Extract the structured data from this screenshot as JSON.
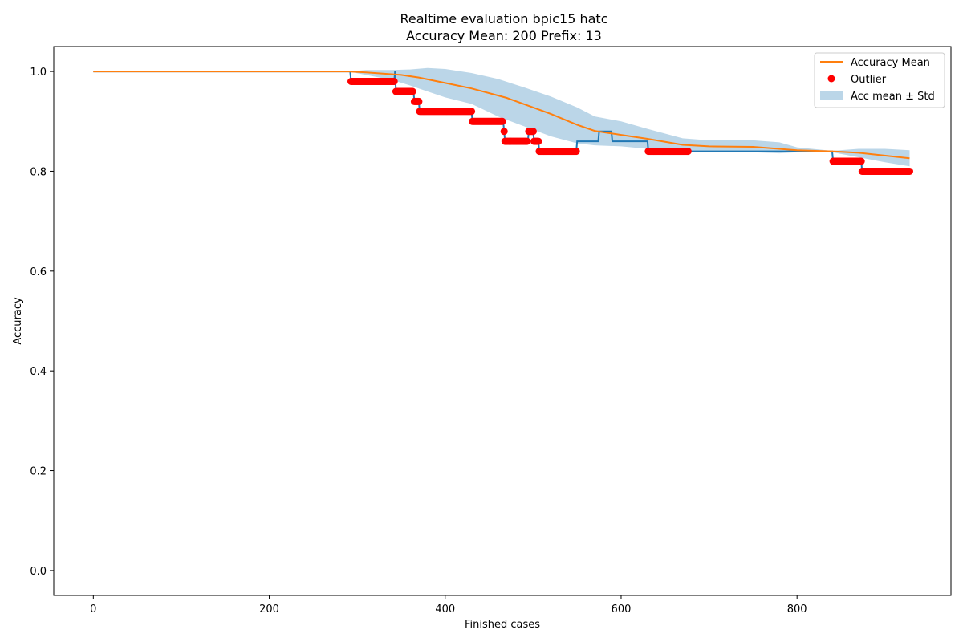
{
  "chart_data": {
    "type": "line",
    "title": "Realtime evaluation bpic15 hatc",
    "subtitle": "Accuracy Mean: 200 Prefix: 13",
    "xlabel": "Finished cases",
    "ylabel": "Accuracy",
    "xlim": [
      -45,
      975
    ],
    "ylim": [
      -0.05,
      1.05
    ],
    "xticks": [
      0,
      200,
      400,
      600,
      800
    ],
    "yticks": [
      0.0,
      0.2,
      0.4,
      0.6,
      0.8,
      1.0
    ],
    "xtick_labels": [
      "0",
      "200",
      "400",
      "600",
      "800"
    ],
    "ytick_labels": [
      "0.0",
      "0.2",
      "0.4",
      "0.6",
      "0.8",
      "1.0"
    ],
    "grid": false,
    "legend_placement": "top-right",
    "legend": {
      "mean_label": "Accuracy Mean",
      "outlier_label": "Outlier",
      "band_label": "Acc mean ± Std"
    },
    "colors": {
      "accuracy": "#1f77b4",
      "mean": "#ff7f0e",
      "outlier": "#ff0000",
      "band": "#1f77b4"
    },
    "accuracy_steps": [
      [
        0,
        1.0
      ],
      [
        292,
        1.0
      ],
      [
        293,
        0.98
      ],
      [
        342,
        0.98
      ],
      [
        343,
        1.0
      ],
      [
        344,
        0.96
      ],
      [
        364,
        0.96
      ],
      [
        365,
        0.94
      ],
      [
        370,
        0.94
      ],
      [
        371,
        0.92
      ],
      [
        430,
        0.92
      ],
      [
        431,
        0.9
      ],
      [
        466,
        0.9
      ],
      [
        467,
        0.88
      ],
      [
        468,
        0.86
      ],
      [
        494,
        0.86
      ],
      [
        495,
        0.88
      ],
      [
        500,
        0.88
      ],
      [
        501,
        0.86
      ],
      [
        506,
        0.86
      ],
      [
        507,
        0.84
      ],
      [
        549,
        0.84
      ],
      [
        550,
        0.86
      ],
      [
        574,
        0.86
      ],
      [
        575,
        0.88
      ],
      [
        589,
        0.88
      ],
      [
        590,
        0.86
      ],
      [
        630,
        0.86
      ],
      [
        631,
        0.84
      ],
      [
        840,
        0.84
      ],
      [
        841,
        0.82
      ],
      [
        873,
        0.82
      ],
      [
        874,
        0.8
      ],
      [
        928,
        0.8
      ]
    ],
    "mean": {
      "x": [
        0,
        290,
        310,
        350,
        370,
        400,
        430,
        470,
        500,
        520,
        550,
        570,
        600,
        630,
        670,
        700,
        750,
        800,
        840,
        870,
        928
      ],
      "y": [
        1.0,
        1.0,
        0.998,
        0.993,
        0.988,
        0.977,
        0.966,
        0.947,
        0.928,
        0.915,
        0.893,
        0.881,
        0.873,
        0.865,
        0.853,
        0.85,
        0.849,
        0.842,
        0.84,
        0.837,
        0.826
      ]
    },
    "band": {
      "x": [
        290,
        310,
        340,
        360,
        380,
        400,
        430,
        460,
        490,
        520,
        550,
        570,
        600,
        630,
        670,
        700,
        750,
        780,
        800,
        840,
        870,
        900,
        928
      ],
      "upper": [
        1.0,
        1.003,
        1.003,
        1.004,
        1.007,
        1.005,
        0.997,
        0.985,
        0.968,
        0.95,
        0.928,
        0.91,
        0.9,
        0.885,
        0.866,
        0.862,
        0.862,
        0.858,
        0.848,
        0.841,
        0.845,
        0.845,
        0.842
      ],
      "lower": [
        1.0,
        0.993,
        0.983,
        0.972,
        0.96,
        0.948,
        0.935,
        0.91,
        0.89,
        0.87,
        0.856,
        0.852,
        0.85,
        0.845,
        0.84,
        0.838,
        0.838,
        0.836,
        0.838,
        0.838,
        0.828,
        0.818,
        0.81
      ]
    },
    "outlier_runs": [
      {
        "from": 293,
        "to": 342,
        "y": 0.98
      },
      {
        "from": 344,
        "to": 363,
        "y": 0.96
      },
      {
        "from": 365,
        "to": 370,
        "y": 0.94
      },
      {
        "from": 371,
        "to": 430,
        "y": 0.92
      },
      {
        "from": 431,
        "to": 465,
        "y": 0.9
      },
      {
        "from": 467,
        "to": 467,
        "y": 0.88
      },
      {
        "from": 468,
        "to": 493,
        "y": 0.86
      },
      {
        "from": 495,
        "to": 500,
        "y": 0.88
      },
      {
        "from": 501,
        "to": 506,
        "y": 0.86
      },
      {
        "from": 507,
        "to": 549,
        "y": 0.84
      },
      {
        "from": 631,
        "to": 676,
        "y": 0.84
      },
      {
        "from": 841,
        "to": 873,
        "y": 0.82
      },
      {
        "from": 874,
        "to": 928,
        "y": 0.8
      }
    ]
  }
}
